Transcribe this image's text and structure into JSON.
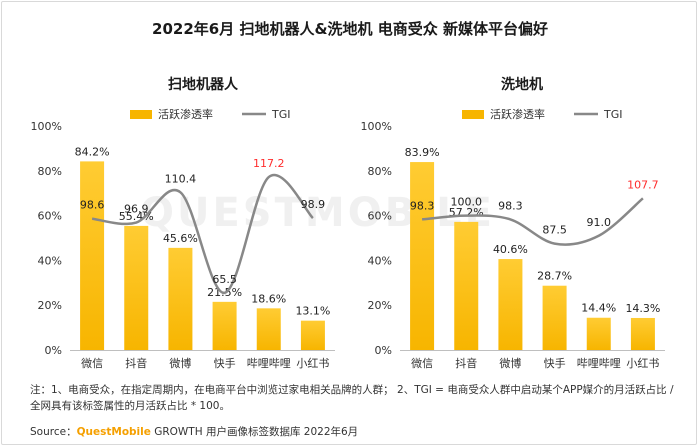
{
  "main_title": "2022年6月 扫地机器人&洗地机 电商受众 新媒体平台偏好",
  "watermark": "QUESTMOBILE",
  "note": "注：1、电商受众，在指定周期内，在电商平台中浏览过家电相关品牌的人群；  2、TGI = 电商受众人群中启动某个APP媒介的月活跃占比 / 全网具有该标签属性的月活跃占比 * 100。",
  "source": {
    "prefix": "Source：",
    "brand": "QuestMobile",
    "rest": " GROWTH 用户画像标签数据库 2022年6月"
  },
  "colors": {
    "bar": "#f7b500",
    "bar_top": "#ffcc33",
    "line": "#888888",
    "highlight": "#ff2d2d"
  },
  "chart_data": [
    {
      "type": "bar",
      "title": "扫地机器人",
      "legend": [
        "活跃渗透率",
        "TGI"
      ],
      "categories": [
        "微信",
        "抖音",
        "微博",
        "快手",
        "哔哩哔哩",
        "小红书"
      ],
      "series": [
        {
          "name": "活跃渗透率",
          "type": "bar",
          "values": [
            84.2,
            55.4,
            45.6,
            21.5,
            18.6,
            13.1
          ],
          "labels": [
            "84.2%",
            "55.4%",
            "45.6%",
            "21.5%",
            "18.6%",
            "13.1%"
          ]
        },
        {
          "name": "TGI",
          "type": "line",
          "values": [
            98.6,
            96.9,
            110.4,
            65.5,
            117.2,
            98.9
          ],
          "labels": [
            "98.6",
            "96.9",
            "110.4",
            "65.5",
            "117.2",
            "98.9"
          ],
          "highlight_index": 4
        }
      ],
      "y_ticks": [
        "0%",
        "20%",
        "40%",
        "60%",
        "80%",
        "100%"
      ],
      "ylim": [
        0,
        100
      ]
    },
    {
      "type": "bar",
      "title": "洗地机",
      "legend": [
        "活跃渗透率",
        "TGI"
      ],
      "categories": [
        "微信",
        "抖音",
        "微博",
        "快手",
        "哔哩哔哩",
        "小红书"
      ],
      "series": [
        {
          "name": "活跃渗透率",
          "type": "bar",
          "values": [
            83.9,
            57.2,
            40.6,
            28.7,
            14.4,
            14.3
          ],
          "labels": [
            "83.9%",
            "57.2%",
            "40.6%",
            "28.7%",
            "14.4%",
            "14.3%"
          ]
        },
        {
          "name": "TGI",
          "type": "line",
          "values": [
            98.3,
            100.0,
            98.3,
            87.5,
            91.0,
            107.7
          ],
          "labels": [
            "98.3",
            "100.0",
            "98.3",
            "87.5",
            "91.0",
            "107.7"
          ],
          "highlight_index": 5
        }
      ],
      "y_ticks": [
        "0%",
        "20%",
        "40%",
        "60%",
        "80%",
        "100%"
      ],
      "ylim": [
        0,
        100
      ]
    }
  ]
}
